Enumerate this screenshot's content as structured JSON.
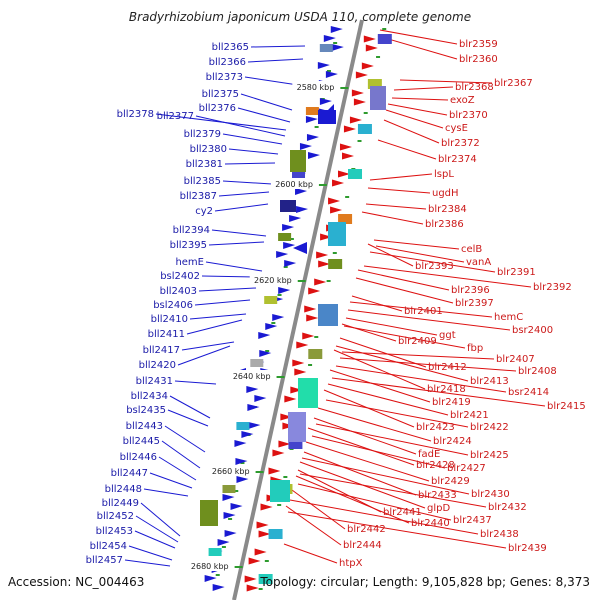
{
  "title": "Bradyrhizobium japonicum USDA 110, complete genome",
  "footer": {
    "accession": "Accession: NC_004463",
    "summary": "Topology: circular; Length: 9,105,828 bp; Genes: 8,373"
  },
  "colors": {
    "minus_strand": "#1a1ad2",
    "plus_strand": "#dd1111",
    "left_label": "#1a1aa8",
    "right_label": "#cc1a1a",
    "backbone": "#8a8a8a",
    "tick": "#2e9b2e"
  },
  "kbp_markers": [
    "2580 kbp",
    "2600 kbp",
    "2620 kbp",
    "2640 kbp",
    "2660 kbp",
    "2680 kbp"
  ],
  "left_labels": [
    "bll2365",
    "bll2366",
    "bll2373",
    "bll2375",
    "bll2376",
    "bll2378",
    "bll2377",
    "bll2379",
    "bll2380",
    "bll2381",
    "bll2385",
    "bll2387",
    "cy2",
    "bll2394",
    "bll2395",
    "hemE",
    "bsl2402",
    "bll2403",
    "bsl2406",
    "bll2410",
    "bll2411",
    "bll2417",
    "bll2420",
    "bll2431",
    "bll2434",
    "bsl2435",
    "bll2443",
    "bll2445",
    "bll2446",
    "bll2447",
    "bll2448",
    "bll2449",
    "bll2452",
    "bll2453",
    "bll2454",
    "bll2457"
  ],
  "right_labels": [
    "blr2359",
    "blr2360",
    "blr2367",
    "blr2368",
    "exoZ",
    "blr2370",
    "cysE",
    "blr2372",
    "blr2374",
    "lspL",
    "ugdH",
    "blr2384",
    "blr2386",
    "celB",
    "vanA",
    "blr2393",
    "blr2391",
    "blr2392",
    "blr2396",
    "blr2397",
    "blr2401",
    "hemC",
    "bsr2400",
    "ggt",
    "fbp",
    "blr2409",
    "blr2407",
    "blr2412",
    "blr2408",
    "blr2413",
    "blr2418",
    "bsr2414",
    "blr2419",
    "blr2415",
    "blr2421",
    "blr2423",
    "blr2422",
    "blr2424",
    "fadE",
    "blr2425",
    "blr2428",
    "blr2427",
    "blr2429",
    "blr2433",
    "blr2430",
    "glpD",
    "blr2441",
    "blr2432",
    "blr2440",
    "blr2437",
    "blr2442",
    "blr2438",
    "blr2444",
    "blr2439",
    "htpX"
  ]
}
